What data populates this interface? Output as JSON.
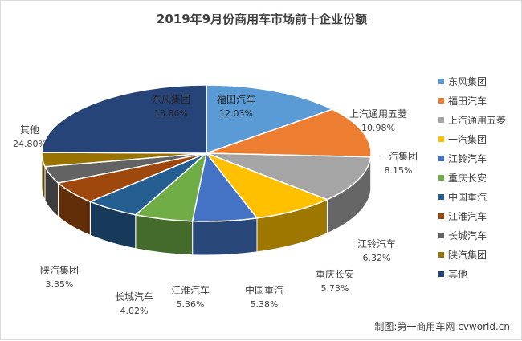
{
  "chart_data": {
    "type": "pie",
    "title": "2019年9月份商用车市场前十企业份额",
    "legend_position": "right",
    "slices": [
      {
        "name": "东风集团",
        "value": 13.86,
        "label": "13.86%",
        "color": "#5b9bd5"
      },
      {
        "name": "福田汽车",
        "value": 12.03,
        "label": "12.03%",
        "color": "#ed7d31"
      },
      {
        "name": "上汽通用五菱",
        "value": 10.98,
        "label": "10.98%",
        "color": "#a5a5a5"
      },
      {
        "name": "一汽集团",
        "value": 8.15,
        "label": "8.15%",
        "color": "#ffc000"
      },
      {
        "name": "江铃汽车",
        "value": 6.32,
        "label": "6.32%",
        "color": "#4472c4"
      },
      {
        "name": "重庆长安",
        "value": 5.73,
        "label": "5.73%",
        "color": "#70ad47"
      },
      {
        "name": "中国重汽",
        "value": 5.38,
        "label": "5.38%",
        "color": "#255e91"
      },
      {
        "name": "江淮汽车",
        "value": 5.36,
        "label": "5.36%",
        "color": "#9e480e"
      },
      {
        "name": "长城汽车",
        "value": 4.02,
        "label": "4.02%",
        "color": "#636363"
      },
      {
        "name": "陕汽集团",
        "value": 3.35,
        "label": "3.35%",
        "color": "#997300"
      },
      {
        "name": "其他",
        "value": 24.8,
        "label": "24.80%",
        "color": "#264478"
      }
    ]
  },
  "source": "制图:第一商用车网 cvworld.cn"
}
